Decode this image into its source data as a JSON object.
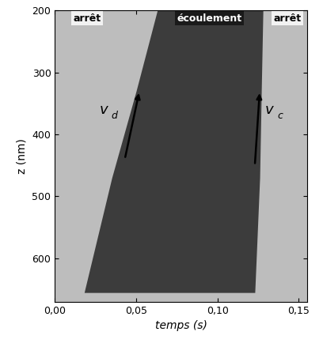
{
  "chart_data": {
    "type": "area",
    "xlabel": "temps (s)",
    "ylabel": "z (nm)",
    "xlim": [
      0,
      0.155
    ],
    "ylim": [
      670,
      200
    ],
    "xticks": [
      {
        "value": 0,
        "label": "0,00"
      },
      {
        "value": 0.05,
        "label": "0,05"
      },
      {
        "value": 0.1,
        "label": "0,10"
      },
      {
        "value": 0.15,
        "label": "0,15"
      }
    ],
    "yticks": [
      200,
      300,
      400,
      500,
      600
    ],
    "color": "#bdbdbd",
    "flow_region": {
      "color": "#3c3c3c",
      "z": [
        200,
        330,
        470,
        655
      ],
      "start": [
        0.063,
        0.05,
        0.035,
        0.018
      ],
      "end": [
        0.128,
        0.127,
        0.126,
        0.123
      ]
    },
    "annotations": [
      {
        "text": "arrêt",
        "x": 0.02,
        "z": 213,
        "color": "#f2f2f2"
      },
      {
        "text": "écoulement",
        "x": 0.095,
        "z": 213,
        "color": "#1a1a1a"
      },
      {
        "text": "arrêt",
        "x": 0.143,
        "z": 213,
        "color": "#f2f2f2"
      }
    ],
    "arrows": [
      {
        "text": "v",
        "subscript": "d",
        "from": [
          0.043,
          440
        ],
        "to": [
          0.052,
          330
        ],
        "label_at": [
          0.03,
          360
        ]
      },
      {
        "text": "v",
        "subscript": "c",
        "from": [
          0.123,
          450
        ],
        "to": [
          0.126,
          330
        ],
        "label_at": [
          0.132,
          360
        ]
      }
    ]
  }
}
